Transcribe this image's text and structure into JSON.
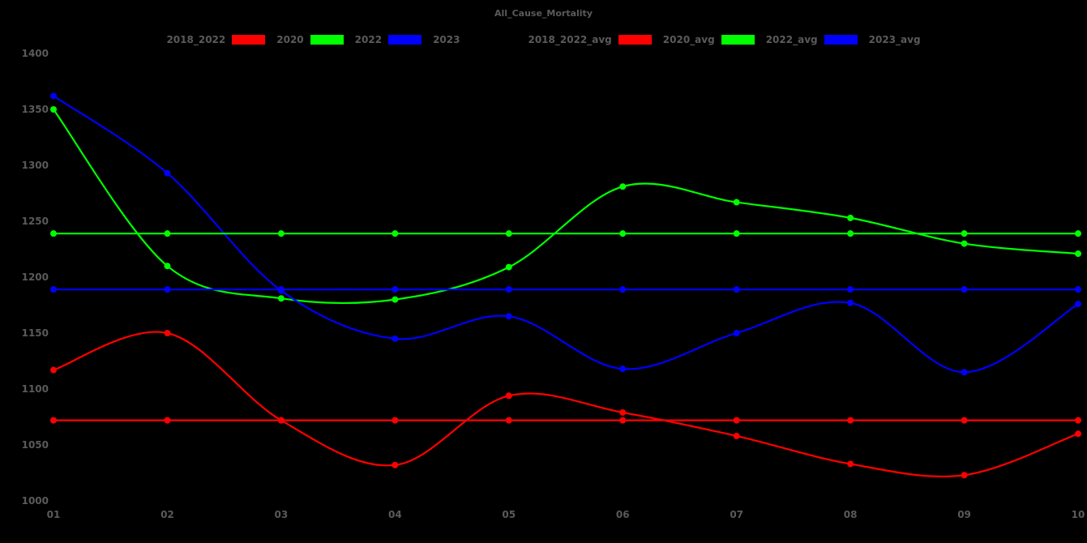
{
  "page": {
    "background_color": "#000000",
    "text_color": "#5a5a5a"
  },
  "title": "All_Cause_Mortality",
  "legend": {
    "tokens": [
      {
        "type": "label",
        "text": "2018_2022"
      },
      {
        "type": "swatch",
        "color": "#ff0000"
      },
      {
        "type": "label",
        "text": "2020"
      },
      {
        "type": "swatch",
        "color": "#00ff00"
      },
      {
        "type": "label",
        "text": "2022"
      },
      {
        "type": "swatch",
        "color": "#0000ff"
      },
      {
        "type": "label",
        "text": "2023"
      },
      {
        "type": "gap"
      },
      {
        "type": "label",
        "text": "2018_2022_avg"
      },
      {
        "type": "swatch",
        "color": "#ff0000"
      },
      {
        "type": "label",
        "text": "2020_avg"
      },
      {
        "type": "swatch",
        "color": "#00ff00"
      },
      {
        "type": "label",
        "text": "2022_avg"
      },
      {
        "type": "swatch",
        "color": "#0000ff"
      },
      {
        "type": "label",
        "text": "2023_avg"
      }
    ]
  },
  "chart_data": {
    "type": "line",
    "title": "All_Cause_Mortality",
    "xlabel": "",
    "ylabel": "",
    "x_categories": [
      "01",
      "02",
      "03",
      "04",
      "05",
      "06",
      "07",
      "08",
      "09",
      "10"
    ],
    "y_ticks": [
      1000,
      1050,
      1100,
      1150,
      1200,
      1250,
      1300,
      1350,
      1400
    ],
    "ylim": [
      1000,
      1400
    ],
    "grid": false,
    "legend_position": "top-center",
    "marker": "circle",
    "series": [
      {
        "name": "2020",
        "color": "#ff0000",
        "kind": "curve",
        "values": [
          1117,
          1150,
          1072,
          1032,
          1094,
          1079,
          1058,
          1033,
          1023,
          1060
        ]
      },
      {
        "name": "2022",
        "color": "#00ff00",
        "kind": "curve",
        "values": [
          1350,
          1210,
          1181,
          1180,
          1209,
          1281,
          1267,
          1253,
          1230,
          1221
        ]
      },
      {
        "name": "2023",
        "color": "#0000ff",
        "kind": "curve",
        "values": [
          1362,
          1293,
          1188,
          1145,
          1165,
          1118,
          1150,
          1177,
          1115,
          1176
        ]
      },
      {
        "name": "2020_avg",
        "color": "#ff0000",
        "kind": "average-line",
        "values": [
          1072,
          1072,
          1072,
          1072,
          1072,
          1072,
          1072,
          1072,
          1072,
          1072
        ]
      },
      {
        "name": "2022_avg",
        "color": "#00ff00",
        "kind": "average-line",
        "values": [
          1239,
          1239,
          1239,
          1239,
          1239,
          1239,
          1239,
          1239,
          1239,
          1239
        ]
      },
      {
        "name": "2023_avg",
        "color": "#0000ff",
        "kind": "average-line",
        "values": [
          1189,
          1189,
          1189,
          1189,
          1189,
          1189,
          1189,
          1189,
          1189,
          1189
        ]
      }
    ]
  }
}
